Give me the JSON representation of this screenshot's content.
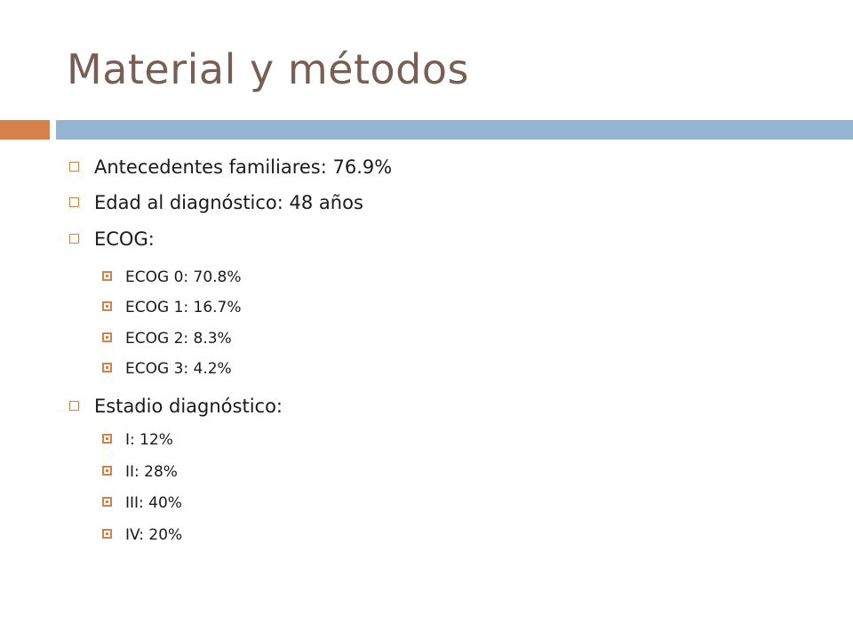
{
  "title": "Material y métodos",
  "colors": {
    "title": "#775f55",
    "accent": "#d6804a",
    "rule": "#94b6d2",
    "text": "#1a1a1a"
  },
  "items": [
    {
      "level": 1,
      "text": "Antecedentes familiares: 76.9%"
    },
    {
      "level": 1,
      "text": "Edad al diagnóstico: 48 años"
    },
    {
      "level": 1,
      "text": "ECOG:"
    },
    {
      "level": 2,
      "text": "ECOG 0: 70.8%"
    },
    {
      "level": 2,
      "text": "ECOG 1: 16.7%"
    },
    {
      "level": 2,
      "text": "ECOG 2: 8.3%"
    },
    {
      "level": 2,
      "text": "ECOG 3: 4.2%"
    },
    {
      "level": 1,
      "text": "Estadio diagnóstico:"
    },
    {
      "level": 2,
      "text": "I: 12%"
    },
    {
      "level": 2,
      "text": "II: 28%"
    },
    {
      "level": 2,
      "text": "III: 40%"
    },
    {
      "level": 2,
      "text": "IV: 20%"
    }
  ]
}
